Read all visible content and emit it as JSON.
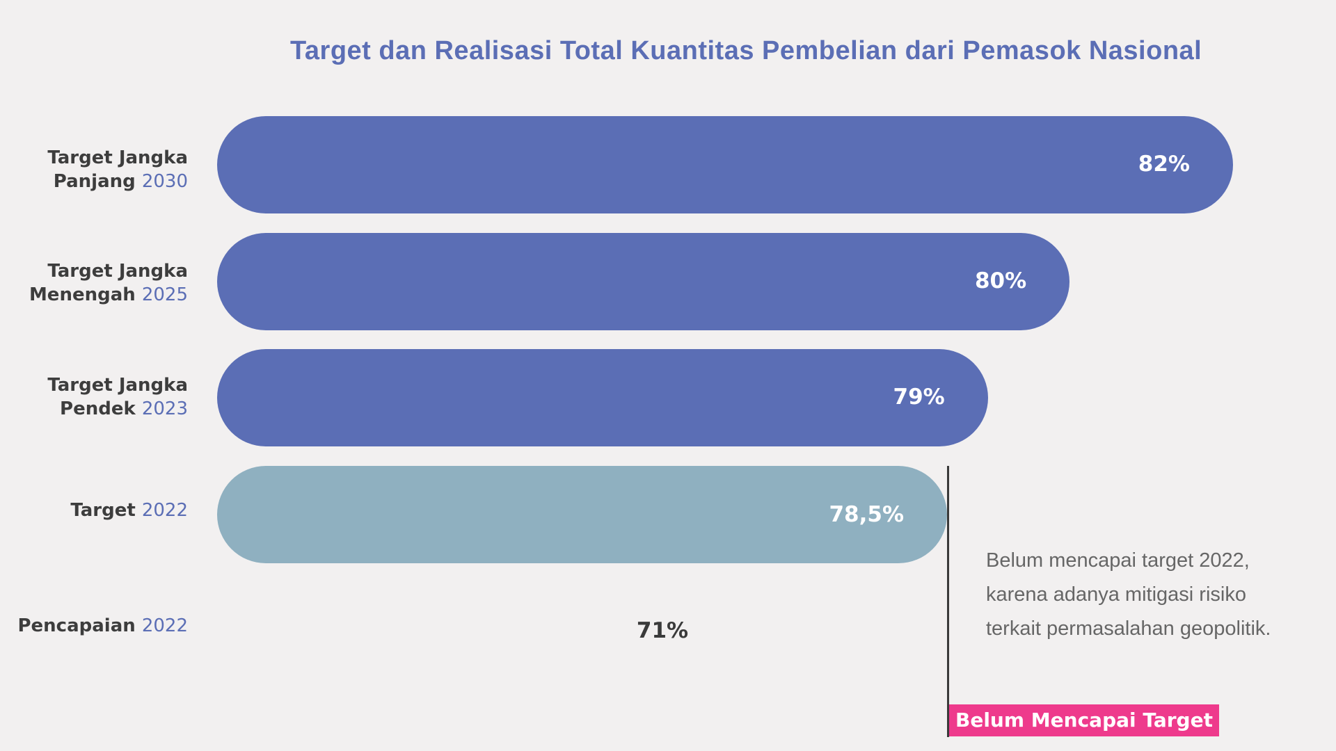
{
  "chart_data": {
    "type": "bar",
    "orientation": "horizontal",
    "title": "Target dan Realisasi Total Kuantitas Pembelian dari Pemasok Nasional",
    "xlim": [
      0,
      82
    ],
    "categories": [
      {
        "label": "Target Jangka Panjang",
        "year": "2030",
        "value": 82,
        "value_label": "82%",
        "color": "#5b6eb5"
      },
      {
        "label": "Target Jangka Menengah",
        "year": "2025",
        "value": 80,
        "value_label": "80%",
        "color": "#5b6eb5"
      },
      {
        "label": "Target Jangka Pendek",
        "year": "2023",
        "value": 79,
        "value_label": "79%",
        "color": "#5b6eb5"
      },
      {
        "label": "Target",
        "year": "2022",
        "value": 78.5,
        "value_label": "78,5%",
        "color": "#8fb0c0"
      },
      {
        "label": "Pencapaian",
        "year": "2022",
        "value": 71,
        "value_label": "71%",
        "color": "none"
      }
    ],
    "annotation": {
      "note": "Belum mencapai target 2022, karena adanya mitigasi risiko terkait permasalahan geopolitik.",
      "badge": "Belum Mencapai Target",
      "badge_color": "#ee3a8c"
    }
  }
}
